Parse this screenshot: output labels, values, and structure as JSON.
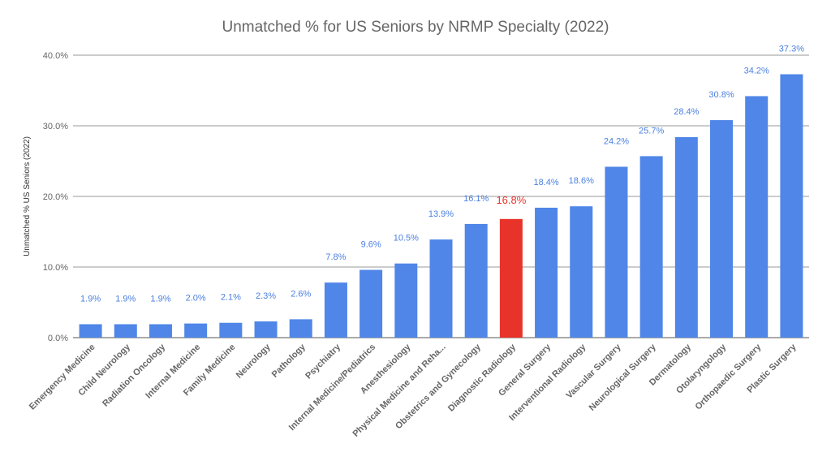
{
  "chart_data": {
    "type": "bar",
    "title": "Unmatched % for US Seniors by NRMP Specialty (2022)",
    "xlabel": "",
    "ylabel": "Unmatched % US Seniors (2022)",
    "ylim": [
      0,
      40
    ],
    "yticks": [
      "0.0%",
      "10.0%",
      "20.0%",
      "30.0%",
      "40.0%"
    ],
    "grid": true,
    "legend": "none",
    "categories": [
      "Emergency Medicine",
      "Child Neurology",
      "Radiation Oncology",
      "Internal Medicine",
      "Family Medicine",
      "Neurology",
      "Pathology",
      "Psychiatry",
      "Internal Medicine/Pediatrics",
      "Anesthesiology",
      "Physical Medicine and Reha...",
      "Obstetrics and Gynecology",
      "Diagnostic Radiology",
      "General Surgery",
      "Interventional Radiology",
      "Vascular Surgery",
      "Neurological Surgery",
      "Dermatology",
      "Otolaryngology",
      "Orthopaedic Surgery",
      "Plastic Surgery"
    ],
    "values": [
      1.9,
      1.9,
      1.9,
      2.0,
      2.1,
      2.3,
      2.6,
      7.8,
      9.6,
      10.5,
      13.9,
      16.1,
      16.8,
      18.4,
      18.6,
      24.2,
      25.7,
      28.4,
      30.8,
      34.2,
      37.3
    ],
    "data_labels": [
      "1.9%",
      "1.9%",
      "1.9%",
      "2.0%",
      "2.1%",
      "2.3%",
      "2.6%",
      "7.8%",
      "9.6%",
      "10.5%",
      "13.9%",
      "16.1%",
      "16.8%",
      "18.4%",
      "18.6%",
      "24.2%",
      "25.7%",
      "28.4%",
      "30.8%",
      "34.2%",
      "37.3%"
    ],
    "highlighted_category": "Diagnostic Radiology",
    "colors": {
      "bar": "#4f86e8",
      "highlight": "#e8332a",
      "label": "#4a7fe0",
      "highlight_label": "#e8332a"
    }
  }
}
